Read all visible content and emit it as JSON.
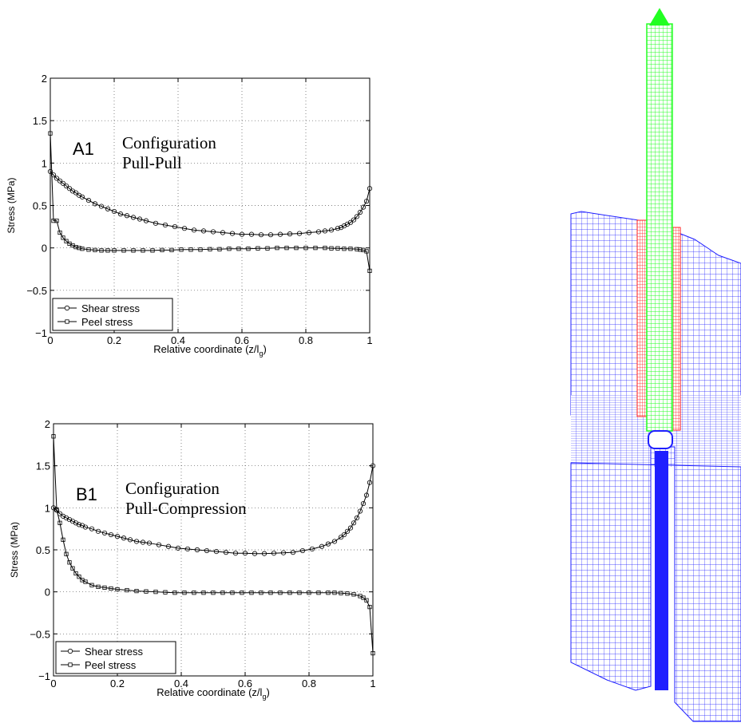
{
  "chart_data": [
    {
      "type": "line",
      "panel_label": "A1",
      "annotation_lines": [
        "Configuration",
        "Pull-Pull"
      ],
      "xlabel": "Relative coordinate (z/l",
      "xlabel_sub": "g",
      "xlabel_close": ")",
      "ylabel": "Stress (MPa)",
      "xlim": [
        0,
        1
      ],
      "ylim": [
        -1,
        2
      ],
      "xticks": [
        0,
        0.2,
        0.4,
        0.6,
        0.8,
        1
      ],
      "xtick_labels": [
        "0",
        "0.2",
        "0.4",
        "0.6",
        "0.8",
        "1"
      ],
      "yticks": [
        -1,
        -0.5,
        0,
        0.5,
        1,
        1.5,
        2
      ],
      "ytick_labels": [
        "−1",
        "−0.5",
        "0",
        "0.5",
        "1",
        "1.5",
        "2"
      ],
      "grid": true,
      "legend_position": "bottom-left",
      "series": [
        {
          "name": "Shear stress",
          "marker": "circle",
          "x": [
            0,
            0.01,
            0.02,
            0.03,
            0.04,
            0.05,
            0.06,
            0.07,
            0.08,
            0.09,
            0.1,
            0.12,
            0.14,
            0.16,
            0.18,
            0.2,
            0.22,
            0.24,
            0.26,
            0.28,
            0.3,
            0.33,
            0.36,
            0.39,
            0.42,
            0.45,
            0.48,
            0.51,
            0.54,
            0.57,
            0.6,
            0.63,
            0.66,
            0.69,
            0.72,
            0.75,
            0.78,
            0.81,
            0.84,
            0.86,
            0.88,
            0.9,
            0.91,
            0.92,
            0.93,
            0.94,
            0.95,
            0.96,
            0.97,
            0.98,
            0.99,
            1.0
          ],
          "y": [
            0.9,
            0.86,
            0.82,
            0.79,
            0.76,
            0.73,
            0.7,
            0.67,
            0.65,
            0.62,
            0.6,
            0.56,
            0.52,
            0.49,
            0.46,
            0.43,
            0.4,
            0.38,
            0.36,
            0.34,
            0.32,
            0.29,
            0.27,
            0.25,
            0.23,
            0.21,
            0.2,
            0.19,
            0.18,
            0.17,
            0.16,
            0.16,
            0.155,
            0.155,
            0.16,
            0.165,
            0.17,
            0.18,
            0.19,
            0.2,
            0.21,
            0.23,
            0.24,
            0.26,
            0.28,
            0.3,
            0.33,
            0.37,
            0.42,
            0.48,
            0.55,
            0.7
          ]
        },
        {
          "name": "Peel stress",
          "marker": "square",
          "x": [
            0,
            0.01,
            0.02,
            0.03,
            0.04,
            0.05,
            0.06,
            0.07,
            0.08,
            0.09,
            0.1,
            0.12,
            0.14,
            0.16,
            0.18,
            0.2,
            0.23,
            0.26,
            0.29,
            0.32,
            0.35,
            0.38,
            0.41,
            0.44,
            0.47,
            0.5,
            0.53,
            0.56,
            0.59,
            0.62,
            0.65,
            0.68,
            0.71,
            0.74,
            0.77,
            0.8,
            0.83,
            0.86,
            0.88,
            0.9,
            0.92,
            0.94,
            0.96,
            0.97,
            0.98,
            0.99,
            1.0
          ],
          "y": [
            1.35,
            0.32,
            0.32,
            0.18,
            0.12,
            0.08,
            0.05,
            0.03,
            0.01,
            0.0,
            -0.01,
            -0.02,
            -0.025,
            -0.03,
            -0.03,
            -0.03,
            -0.03,
            -0.03,
            -0.03,
            -0.03,
            -0.025,
            -0.025,
            -0.02,
            -0.02,
            -0.02,
            -0.015,
            -0.015,
            -0.01,
            -0.01,
            -0.01,
            -0.005,
            -0.005,
            0.0,
            0.0,
            0.0,
            0.0,
            0.0,
            0.0,
            -0.005,
            -0.005,
            -0.01,
            -0.01,
            -0.015,
            -0.02,
            -0.025,
            -0.04,
            -0.27
          ]
        }
      ]
    },
    {
      "type": "line",
      "panel_label": "B1",
      "annotation_lines": [
        "Configuration",
        "Pull-Compression"
      ],
      "xlabel": "Relative coordinate (z/l",
      "xlabel_sub": "g",
      "xlabel_close": ")",
      "ylabel": "Stress (MPa)",
      "xlim": [
        0,
        1
      ],
      "ylim": [
        -1,
        2
      ],
      "xticks": [
        0,
        0.2,
        0.4,
        0.6,
        0.8,
        1
      ],
      "xtick_labels": [
        "0",
        "0.2",
        "0.4",
        "0.6",
        "0.8",
        "1"
      ],
      "yticks": [
        -1,
        -0.5,
        0,
        0.5,
        1,
        1.5,
        2
      ],
      "ytick_labels": [
        "−1",
        "−0.5",
        "0",
        "0.5",
        "1",
        "1.5",
        "2"
      ],
      "grid": true,
      "legend_position": "bottom-left",
      "series": [
        {
          "name": "Shear stress",
          "marker": "circle",
          "x": [
            0,
            0.01,
            0.02,
            0.03,
            0.04,
            0.05,
            0.06,
            0.07,
            0.08,
            0.09,
            0.1,
            0.12,
            0.14,
            0.16,
            0.18,
            0.2,
            0.22,
            0.24,
            0.26,
            0.28,
            0.3,
            0.33,
            0.36,
            0.39,
            0.42,
            0.45,
            0.48,
            0.51,
            0.54,
            0.57,
            0.6,
            0.63,
            0.66,
            0.69,
            0.72,
            0.75,
            0.78,
            0.81,
            0.84,
            0.86,
            0.88,
            0.9,
            0.91,
            0.92,
            0.93,
            0.94,
            0.95,
            0.96,
            0.97,
            0.98,
            0.99,
            1.0
          ],
          "y": [
            1.0,
            0.97,
            0.93,
            0.9,
            0.88,
            0.86,
            0.84,
            0.82,
            0.8,
            0.79,
            0.77,
            0.75,
            0.72,
            0.7,
            0.68,
            0.66,
            0.64,
            0.62,
            0.6,
            0.59,
            0.58,
            0.56,
            0.54,
            0.52,
            0.51,
            0.5,
            0.49,
            0.48,
            0.47,
            0.46,
            0.46,
            0.455,
            0.455,
            0.46,
            0.465,
            0.47,
            0.49,
            0.51,
            0.54,
            0.57,
            0.6,
            0.65,
            0.68,
            0.72,
            0.76,
            0.82,
            0.88,
            0.96,
            1.05,
            1.15,
            1.3,
            1.5
          ]
        },
        {
          "name": "Peel stress",
          "marker": "square",
          "x": [
            0,
            0.01,
            0.02,
            0.03,
            0.04,
            0.05,
            0.06,
            0.07,
            0.08,
            0.09,
            0.1,
            0.12,
            0.14,
            0.16,
            0.18,
            0.2,
            0.23,
            0.26,
            0.29,
            0.32,
            0.35,
            0.38,
            0.41,
            0.44,
            0.47,
            0.5,
            0.53,
            0.56,
            0.59,
            0.62,
            0.65,
            0.68,
            0.71,
            0.74,
            0.77,
            0.8,
            0.83,
            0.86,
            0.88,
            0.9,
            0.92,
            0.94,
            0.96,
            0.97,
            0.98,
            0.99,
            1.0
          ],
          "y": [
            1.85,
            0.98,
            0.82,
            0.62,
            0.45,
            0.35,
            0.28,
            0.22,
            0.18,
            0.14,
            0.12,
            0.08,
            0.06,
            0.05,
            0.04,
            0.03,
            0.02,
            0.01,
            0.005,
            0.0,
            -0.005,
            -0.01,
            -0.01,
            -0.01,
            -0.01,
            -0.01,
            -0.01,
            -0.01,
            -0.01,
            -0.01,
            -0.01,
            -0.01,
            -0.01,
            -0.01,
            -0.01,
            -0.01,
            -0.01,
            -0.01,
            -0.01,
            -0.015,
            -0.02,
            -0.03,
            -0.05,
            -0.07,
            -0.1,
            -0.18,
            -0.73
          ]
        }
      ]
    }
  ],
  "mesh_colors": {
    "substrate": "#1f1fff",
    "adhesive": "#ff1f1f",
    "adherend": "#22ff22"
  }
}
